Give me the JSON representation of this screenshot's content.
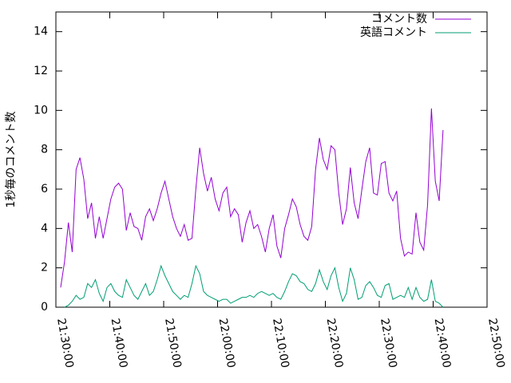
{
  "chart_data": {
    "type": "line",
    "ylabel": "1秒毎のコメント数",
    "x": [
      "21:30:53",
      "21:31:36",
      "21:32:19",
      "21:33:02",
      "21:33:45",
      "21:34:28",
      "21:35:11",
      "21:35:54",
      "21:36:37",
      "21:37:20",
      "21:38:03",
      "21:38:46",
      "21:39:29",
      "21:40:12",
      "21:40:55",
      "21:41:38",
      "21:42:21",
      "21:43:04",
      "21:43:47",
      "21:44:30",
      "21:45:13",
      "21:45:56",
      "21:46:39",
      "21:47:22",
      "21:48:05",
      "21:48:48",
      "21:49:31",
      "21:50:14",
      "21:50:57",
      "21:51:40",
      "21:52:23",
      "21:53:06",
      "21:53:49",
      "21:54:32",
      "21:55:15",
      "21:55:58",
      "21:56:41",
      "21:57:24",
      "21:58:07",
      "21:58:50",
      "21:59:33",
      "22:00:16",
      "22:00:59",
      "22:01:42",
      "22:02:25",
      "22:03:08",
      "22:03:51",
      "22:04:34",
      "22:05:17",
      "22:06:00",
      "22:06:43",
      "22:07:26",
      "22:08:09",
      "22:08:52",
      "22:09:35",
      "22:10:18",
      "22:11:01",
      "22:11:44",
      "22:12:27",
      "22:13:10",
      "22:13:53",
      "22:14:36",
      "22:15:19",
      "22:16:02",
      "22:16:45",
      "22:17:28",
      "22:18:11",
      "22:18:54",
      "22:19:37",
      "22:20:20",
      "22:21:03",
      "22:21:46",
      "22:22:29",
      "22:23:12",
      "22:23:55",
      "22:24:38",
      "22:25:21",
      "22:26:04",
      "22:26:47",
      "22:27:30",
      "22:28:13",
      "22:28:56",
      "22:29:39",
      "22:30:22",
      "22:31:05",
      "22:31:48",
      "22:32:31",
      "22:33:14",
      "22:33:57",
      "22:34:40",
      "22:35:23",
      "22:36:06",
      "22:36:49",
      "22:37:32",
      "22:38:15",
      "22:38:58",
      "22:39:41",
      "22:40:24",
      "22:41:07",
      "22:41:50"
    ],
    "series": [
      {
        "name": "コメント数",
        "color": "#9400d3",
        "values": [
          1.0,
          2.3,
          4.3,
          2.8,
          7.0,
          7.6,
          6.5,
          4.5,
          5.3,
          3.5,
          4.6,
          3.5,
          4.5,
          5.5,
          6.1,
          6.3,
          6.0,
          3.9,
          4.8,
          4.1,
          4.0,
          3.4,
          4.6,
          5.0,
          4.4,
          5.0,
          5.8,
          6.4,
          5.5,
          4.6,
          4.0,
          3.6,
          4.2,
          3.4,
          3.5,
          6.0,
          8.1,
          6.8,
          5.9,
          6.6,
          5.5,
          4.9,
          5.8,
          6.1,
          4.6,
          5.0,
          4.7,
          3.3,
          4.3,
          4.9,
          4.0,
          4.2,
          3.6,
          2.8,
          4.0,
          4.7,
          3.1,
          2.5,
          4.0,
          4.7,
          5.5,
          5.1,
          4.2,
          3.6,
          3.4,
          4.1,
          7.0,
          8.6,
          7.5,
          7.0,
          8.2,
          8.0,
          5.8,
          4.2,
          5.0,
          7.1,
          5.3,
          4.5,
          6.0,
          7.4,
          8.1,
          5.8,
          5.7,
          7.3,
          7.4,
          5.8,
          5.4,
          5.9,
          3.5,
          2.6,
          2.8,
          2.7,
          4.8,
          3.3,
          2.9,
          5.2,
          10.1,
          6.4,
          5.4,
          9.0
        ]
      },
      {
        "name": "英語コメント",
        "color": "#009e73",
        "values": [
          null,
          0.0,
          0.1,
          0.3,
          0.6,
          0.4,
          0.5,
          1.2,
          1.0,
          1.4,
          0.7,
          0.3,
          1.0,
          1.2,
          0.8,
          0.6,
          0.5,
          1.4,
          1.0,
          0.6,
          0.4,
          0.8,
          1.2,
          0.6,
          0.8,
          1.4,
          2.1,
          1.6,
          1.2,
          0.8,
          0.6,
          0.4,
          0.6,
          0.5,
          1.2,
          2.1,
          1.7,
          0.8,
          0.6,
          0.5,
          0.4,
          0.3,
          0.4,
          0.4,
          0.2,
          0.3,
          0.4,
          0.5,
          0.5,
          0.6,
          0.5,
          0.7,
          0.8,
          0.7,
          0.6,
          0.7,
          0.5,
          0.4,
          0.8,
          1.3,
          1.7,
          1.6,
          1.3,
          1.2,
          0.9,
          0.8,
          1.2,
          1.9,
          1.3,
          0.9,
          1.6,
          2.0,
          1.0,
          0.3,
          0.7,
          2.0,
          1.4,
          0.4,
          0.5,
          1.1,
          1.3,
          1.0,
          0.6,
          0.5,
          1.1,
          1.2,
          0.4,
          0.5,
          0.6,
          0.5,
          1.0,
          0.4,
          1.0,
          0.5,
          0.3,
          0.4,
          1.4,
          0.3,
          0.2,
          0.0
        ]
      }
    ],
    "xlim": [
      "21:30:00",
      "22:50:00"
    ],
    "xticks": [
      "21:30:00",
      "21:40:00",
      "21:50:00",
      "22:00:00",
      "22:10:00",
      "22:20:00",
      "22:30:00",
      "22:40:00",
      "22:50:00"
    ],
    "ylim": [
      0,
      15
    ],
    "yticks": [
      0,
      2,
      4,
      6,
      8,
      10,
      12,
      14
    ],
    "legend": "top-right"
  }
}
